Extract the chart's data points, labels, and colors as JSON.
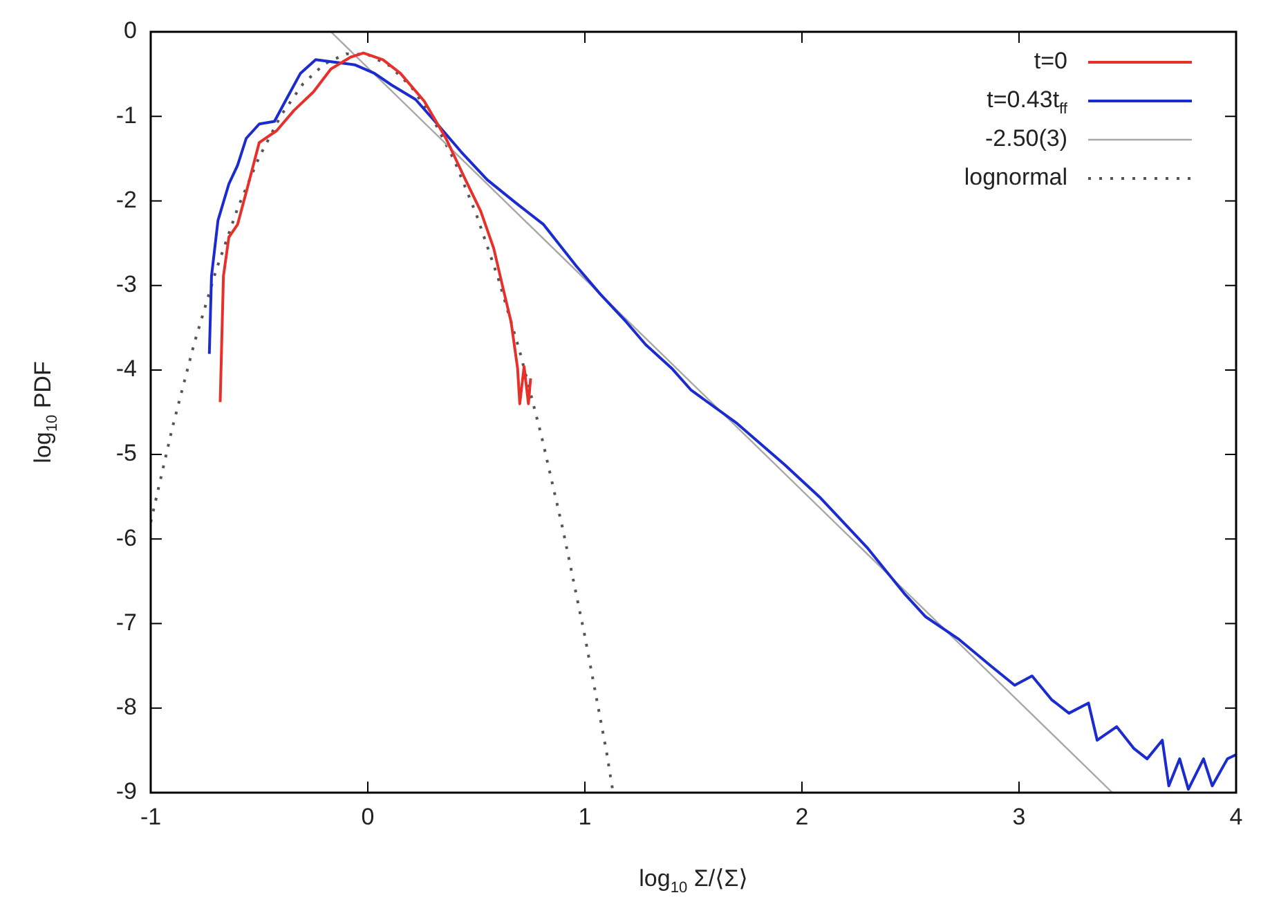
{
  "chart_data": {
    "type": "line",
    "xlabel": "log$_{10}$ Σ/⟨Σ⟩",
    "ylabel": "log$_{10}$ PDF",
    "xlim": [
      -1,
      4
    ],
    "ylim": [
      -9,
      0
    ],
    "xticks": [
      -1,
      0,
      1,
      2,
      3,
      4
    ],
    "yticks": [
      0,
      -1,
      -2,
      -3,
      -4,
      -5,
      -6,
      -7,
      -8,
      -9
    ],
    "grid": false,
    "legend": "top right",
    "marker": "none",
    "series": [
      {
        "name": "t=0",
        "color": "#e8302a",
        "line_style": "solid",
        "x": [
          -0.68,
          -0.665,
          -0.64,
          -0.6,
          -0.55,
          -0.5,
          -0.42,
          -0.34,
          -0.25,
          -0.17,
          -0.08,
          -0.02,
          0.07,
          0.15,
          0.26,
          0.36,
          0.45,
          0.52,
          0.58,
          0.62,
          0.66,
          0.69,
          0.7,
          0.72,
          0.74,
          0.75
        ],
        "values": [
          -4.38,
          -2.89,
          -2.43,
          -2.28,
          -1.8,
          -1.31,
          -1.17,
          -0.93,
          -0.71,
          -0.44,
          -0.3,
          -0.25,
          -0.33,
          -0.49,
          -0.82,
          -1.26,
          -1.75,
          -2.12,
          -2.56,
          -3.0,
          -3.43,
          -3.98,
          -4.4,
          -3.96,
          -4.4,
          -4.1
        ]
      },
      {
        "name": "t=0.43t$_{ff}$",
        "color": "#1a2bd0",
        "line_style": "solid",
        "x": [
          -0.73,
          -0.72,
          -0.69,
          -0.64,
          -0.6,
          -0.56,
          -0.5,
          -0.43,
          -0.38,
          -0.31,
          -0.24,
          -0.15,
          -0.06,
          0.03,
          0.11,
          0.22,
          0.32,
          0.43,
          0.55,
          0.68,
          0.81,
          0.96,
          1.07,
          1.19,
          1.28,
          1.4,
          1.49,
          1.7,
          1.92,
          2.08,
          2.3,
          2.47,
          2.57,
          2.72,
          2.87,
          2.98,
          3.06,
          3.15,
          3.23,
          3.32,
          3.36,
          3.45,
          3.53,
          3.59,
          3.66,
          3.69,
          3.74,
          3.78,
          3.85,
          3.89,
          3.96,
          4.0
        ],
        "values": [
          -3.81,
          -2.89,
          -2.23,
          -1.8,
          -1.58,
          -1.26,
          -1.09,
          -1.06,
          -0.82,
          -0.49,
          -0.33,
          -0.36,
          -0.39,
          -0.49,
          -0.63,
          -0.8,
          -1.09,
          -1.42,
          -1.75,
          -2.02,
          -2.28,
          -2.77,
          -3.1,
          -3.43,
          -3.7,
          -3.98,
          -4.24,
          -4.63,
          -5.12,
          -5.5,
          -6.1,
          -6.64,
          -6.92,
          -7.18,
          -7.5,
          -7.73,
          -7.62,
          -7.9,
          -8.06,
          -7.94,
          -8.38,
          -8.22,
          -8.48,
          -8.6,
          -8.38,
          -8.92,
          -8.6,
          -8.96,
          -8.6,
          -8.92,
          -8.6,
          -8.55
        ]
      },
      {
        "name": "-2.50(3)",
        "color": "#a8a8a8",
        "line_style": "solid",
        "x": [
          -0.17,
          3.43
        ],
        "values": [
          0,
          -9
        ]
      },
      {
        "name": "lognormal",
        "color": "#555555",
        "line_style": "dotted",
        "x": [
          -1,
          -0.9,
          -0.8,
          -0.7,
          -0.6,
          -0.5,
          -0.4,
          -0.3,
          -0.2,
          -0.1,
          0,
          0.1,
          0.2,
          0.3,
          0.4,
          0.5,
          0.6,
          0.7,
          0.8,
          0.9,
          1.0,
          1.1,
          1.13
        ],
        "values": [
          -5.8,
          -4.68,
          -3.69,
          -2.83,
          -2.09,
          -1.48,
          -0.99,
          -0.62,
          -0.38,
          -0.26,
          -0.27,
          -0.4,
          -0.65,
          -1.03,
          -1.53,
          -2.16,
          -2.91,
          -3.78,
          -4.78,
          -5.9,
          -7.15,
          -8.52,
          -9.0
        ]
      }
    ]
  }
}
